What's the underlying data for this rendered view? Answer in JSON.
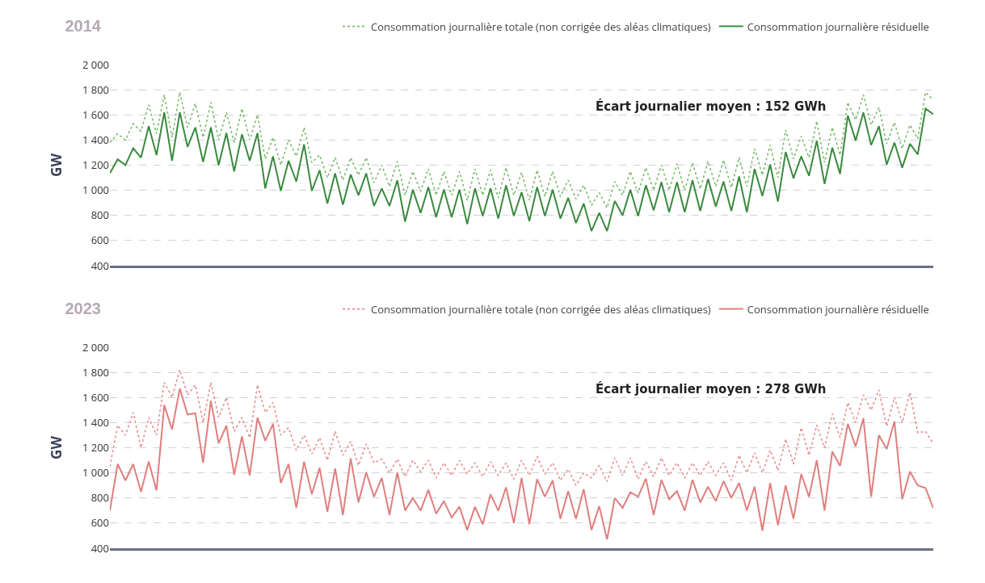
{
  "chart_data": [
    {
      "type": "line",
      "title": "2014",
      "ylabel": "GW",
      "annotations": [
        "Écart journalier moyen : 152 GWh"
      ],
      "categories": [
        null,
        null,
        null,
        null,
        null,
        null,
        null,
        null,
        null,
        null,
        null,
        null,
        null,
        null,
        null,
        null,
        null,
        null,
        null,
        null,
        null,
        null,
        null,
        null,
        null,
        null,
        null,
        null,
        null,
        null,
        null,
        null,
        null,
        null,
        null,
        null,
        null,
        null,
        null,
        null,
        null,
        null,
        null,
        null,
        null,
        null,
        null,
        null,
        null,
        null,
        null,
        null,
        null,
        null,
        null,
        null,
        null,
        null,
        null,
        null,
        null,
        null,
        null,
        null,
        null,
        null,
        null,
        null,
        null,
        null,
        null,
        null,
        null,
        null,
        null,
        null,
        null,
        null,
        null,
        null,
        null,
        null,
        null,
        null,
        null,
        null,
        null,
        null,
        null,
        null,
        null,
        null,
        null,
        null,
        null,
        null,
        null,
        null,
        null,
        null,
        null,
        null,
        null,
        null,
        null,
        null,
        null
      ],
      "ylim": [
        400,
        2000
      ],
      "yticks": [
        {
          "value": 400,
          "label": "400"
        },
        {
          "value": 600,
          "label": "600"
        },
        {
          "value": 800,
          "label": "800"
        },
        {
          "value": 1000,
          "label": "1 000"
        },
        {
          "value": 1200,
          "label": "1 200"
        },
        {
          "value": 1400,
          "label": "1 400"
        },
        {
          "value": 1600,
          "label": "1 600"
        },
        {
          "value": 1800,
          "label": "1 800"
        },
        {
          "value": 2000,
          "label": "2 000"
        }
      ],
      "grid": "y",
      "legend": "top right",
      "tick_labels": "y",
      "series": [
        {
          "name": "Consommation journalière totale (non corrigée des aléas climatiques)",
          "color": "#7dbb6e",
          "line_style": "dotted",
          "values": [
            1380,
            1450,
            1400,
            1530,
            1470,
            1680,
            1450,
            1760,
            1420,
            1780,
            1500,
            1690,
            1420,
            1700,
            1400,
            1620,
            1380,
            1650,
            1400,
            1600,
            1250,
            1420,
            1200,
            1400,
            1270,
            1500,
            1220,
            1280,
            1100,
            1260,
            1080,
            1260,
            1120,
            1260,
            1060,
            1200,
            1030,
            1230,
            960,
            1150,
            990,
            1170,
            960,
            1150,
            960,
            1150,
            920,
            1170,
            960,
            1160,
            940,
            1180,
            960,
            1140,
            920,
            1160,
            950,
            1150,
            950,
            1080,
            930,
            1040,
            880,
            980,
            860,
            1070,
            960,
            1150,
            980,
            1180,
            1000,
            1200,
            1000,
            1210,
            1000,
            1220,
            1010,
            1230,
            1030,
            1240,
            1020,
            1260,
            1030,
            1330,
            1120,
            1360,
            1100,
            1480,
            1250,
            1430,
            1260,
            1550,
            1220,
            1500,
            1280,
            1700,
            1560,
            1760,
            1520,
            1660,
            1370,
            1540,
            1330,
            1520,
            1410,
            1780,
            1720
          ]
        },
        {
          "name": "Consommation journalière résiduelle",
          "color": "#3a8a3f",
          "line_style": "solid",
          "values": [
            1136,
            1246,
            1200,
            1334,
            1260,
            1510,
            1280,
            1620,
            1235,
            1620,
            1345,
            1500,
            1225,
            1500,
            1200,
            1455,
            1150,
            1445,
            1235,
            1455,
            1015,
            1270,
            995,
            1235,
            1070,
            1365,
            995,
            1160,
            895,
            1135,
            885,
            1125,
            960,
            1135,
            875,
            1015,
            875,
            1080,
            750,
            1005,
            820,
            1025,
            785,
            1005,
            785,
            1005,
            730,
            1015,
            795,
            1015,
            775,
            1040,
            795,
            985,
            755,
            1025,
            795,
            1005,
            775,
            940,
            740,
            895,
            675,
            820,
            675,
            915,
            800,
            1005,
            795,
            1040,
            840,
            1065,
            825,
            1065,
            825,
            1080,
            835,
            1090,
            870,
            1070,
            835,
            1110,
            825,
            1170,
            955,
            1205,
            910,
            1305,
            1095,
            1270,
            1115,
            1395,
            1050,
            1340,
            1130,
            1595,
            1395,
            1620,
            1360,
            1510,
            1205,
            1380,
            1180,
            1370,
            1285,
            1650,
            1605
          ]
        }
      ]
    },
    {
      "type": "line",
      "title": "2023",
      "ylabel": "GW",
      "annotations": [
        "Écart journalier moyen : 278 GWh"
      ],
      "categories": [
        null,
        null,
        null,
        null,
        null,
        null,
        null,
        null,
        null,
        null,
        null,
        null,
        null,
        null,
        null,
        null,
        null,
        null,
        null,
        null,
        null,
        null,
        null,
        null,
        null,
        null,
        null,
        null,
        null,
        null,
        null,
        null,
        null,
        null,
        null,
        null,
        null,
        null,
        null,
        null,
        null,
        null,
        null,
        null,
        null,
        null,
        null,
        null,
        null,
        null,
        null,
        null,
        null,
        null,
        null,
        null,
        null,
        null,
        null,
        null,
        null,
        null,
        null,
        null,
        null,
        null,
        null,
        null,
        null,
        null,
        null,
        null,
        null,
        null,
        null,
        null,
        null,
        null,
        null,
        null,
        null,
        null,
        null,
        null,
        null,
        null,
        null,
        null,
        null,
        null,
        null,
        null,
        null,
        null,
        null,
        null,
        null,
        null,
        null,
        null,
        null,
        null,
        null,
        null,
        null,
        null,
        null
      ],
      "ylim": [
        400,
        2000
      ],
      "yticks": [
        {
          "value": 400,
          "label": "400"
        },
        {
          "value": 600,
          "label": "600"
        },
        {
          "value": 800,
          "label": "800"
        },
        {
          "value": 1000,
          "label": "1 000"
        },
        {
          "value": 1200,
          "label": "1 200"
        },
        {
          "value": 1400,
          "label": "1 400"
        },
        {
          "value": 1600,
          "label": "1 600"
        },
        {
          "value": 1800,
          "label": "1 800"
        },
        {
          "value": 2000,
          "label": "2 000"
        }
      ],
      "grid": "y",
      "legend": "top right",
      "tick_labels": "y",
      "series": [
        {
          "name": "Consommation journalière totale (non corrigée des aléas climatiques)",
          "color": "#e8908f",
          "line_style": "dotted",
          "values": [
            1050,
            1380,
            1300,
            1480,
            1200,
            1440,
            1300,
            1720,
            1600,
            1820,
            1620,
            1700,
            1400,
            1720,
            1440,
            1600,
            1330,
            1440,
            1280,
            1700,
            1480,
            1560,
            1300,
            1360,
            1180,
            1300,
            1150,
            1280,
            1100,
            1330,
            1140,
            1250,
            1060,
            1230,
            1080,
            1110,
            1000,
            1110,
            970,
            1100,
            1010,
            1100,
            960,
            1080,
            980,
            1100,
            990,
            1080,
            970,
            1090,
            980,
            1080,
            950,
            1100,
            980,
            1130,
            990,
            1080,
            940,
            1030,
            900,
            1000,
            960,
            1060,
            930,
            1120,
            980,
            1120,
            950,
            1090,
            970,
            1120,
            980,
            1080,
            960,
            1080,
            980,
            1090,
            980,
            1080,
            940,
            1140,
            1000,
            1160,
            1000,
            1180,
            1020,
            1270,
            1070,
            1360,
            1140,
            1380,
            1200,
            1470,
            1280,
            1560,
            1400,
            1620,
            1500,
            1660,
            1370,
            1600,
            1400,
            1640,
            1320,
            1330,
            1230
          ]
        },
        {
          "name": "Consommation journalière résiduelle",
          "color": "#e07f7f",
          "line_style": "solid",
          "values": [
            700,
            1070,
            940,
            1070,
            850,
            1090,
            860,
            1540,
            1345,
            1670,
            1465,
            1475,
            1080,
            1575,
            1235,
            1375,
            985,
            1290,
            980,
            1440,
            1255,
            1390,
            920,
            1070,
            720,
            1090,
            830,
            1040,
            690,
            1035,
            665,
            1115,
            765,
            1005,
            810,
            960,
            665,
            1005,
            700,
            800,
            700,
            865,
            675,
            775,
            645,
            730,
            545,
            730,
            590,
            830,
            700,
            885,
            600,
            960,
            590,
            950,
            810,
            940,
            635,
            855,
            635,
            870,
            545,
            735,
            470,
            800,
            720,
            845,
            810,
            955,
            665,
            945,
            790,
            855,
            700,
            945,
            765,
            890,
            775,
            935,
            800,
            920,
            700,
            890,
            540,
            920,
            585,
            900,
            635,
            990,
            810,
            1100,
            700,
            1170,
            1055,
            1390,
            1210,
            1435,
            810,
            1300,
            1190,
            1410,
            790,
            1010,
            900,
            880,
            720
          ]
        }
      ]
    }
  ]
}
